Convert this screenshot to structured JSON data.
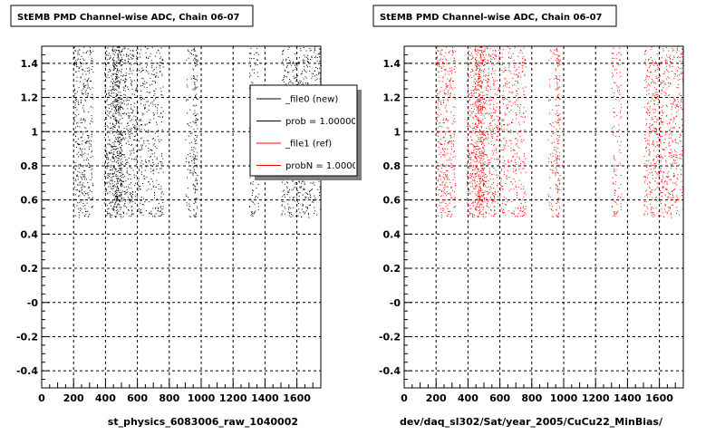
{
  "chart_data": [
    {
      "type": "scatter",
      "title": "StEMB PMD Channel-wise ADC, Chain 06-07",
      "xlabel": "st_physics_6083006_raw_1040002",
      "ylabel": "",
      "xlim": [
        0,
        1750
      ],
      "ylim": [
        -0.5,
        1.5
      ],
      "x_ticks": [
        "0",
        "200",
        "400",
        "600",
        "800",
        "1000",
        "1200",
        "1400",
        "1600"
      ],
      "y_ticks": [
        "-0.4",
        "-0.2",
        "-0",
        "0.2",
        "0.4",
        "0.6",
        "0.8",
        "1",
        "1.2",
        "1.4"
      ],
      "grid": true,
      "legend_position": "top-right",
      "legend": [
        {
          "label": "_file0 (new)",
          "color": "#000000"
        },
        {
          "label": "prob = 1.000000",
          "color": "#000000"
        },
        {
          "label": "_file1 (ref)",
          "color": "#ff0000"
        },
        {
          "label": "probN = 1.000000",
          "color": "#ff0000"
        }
      ],
      "series": [
        {
          "color": "#000000",
          "y_range": [
            0.5,
            1.5
          ],
          "x_bands": [
            [
              200,
              320,
              0.55
            ],
            [
              390,
              570,
              0.65
            ],
            [
              440,
              500,
              0.95
            ],
            [
              570,
              760,
              0.4
            ],
            [
              900,
              940,
              0.25
            ],
            [
              945,
              975,
              0.95
            ],
            [
              1300,
              1360,
              0.35
            ],
            [
              1500,
              1750,
              0.5
            ]
          ]
        }
      ]
    },
    {
      "type": "scatter",
      "title": "StEMB PMD Channel-wise ADC, Chain 06-07",
      "xlabel": "dev/daq_sl302/Sat/year_2005/CuCu22_MinBias/",
      "ylabel": "",
      "xlim": [
        0,
        1750
      ],
      "ylim": [
        -0.5,
        1.5
      ],
      "x_ticks": [
        "0",
        "200",
        "400",
        "600",
        "800",
        "1000",
        "1200",
        "1400",
        "1600"
      ],
      "y_ticks": [
        "-0.4",
        "-0.2",
        "-0",
        "0.2",
        "0.4",
        "0.6",
        "0.8",
        "1",
        "1.2",
        "1.4"
      ],
      "grid": true,
      "series": [
        {
          "color": "#ff0000",
          "y_range": [
            0.5,
            1.5
          ],
          "x_bands": [
            [
              200,
              320,
              0.55
            ],
            [
              390,
              570,
              0.65
            ],
            [
              440,
              500,
              0.95
            ],
            [
              570,
              760,
              0.4
            ],
            [
              900,
              940,
              0.25
            ],
            [
              945,
              975,
              0.95
            ],
            [
              1300,
              1360,
              0.35
            ],
            [
              1500,
              1750,
              0.5
            ]
          ]
        }
      ]
    }
  ]
}
